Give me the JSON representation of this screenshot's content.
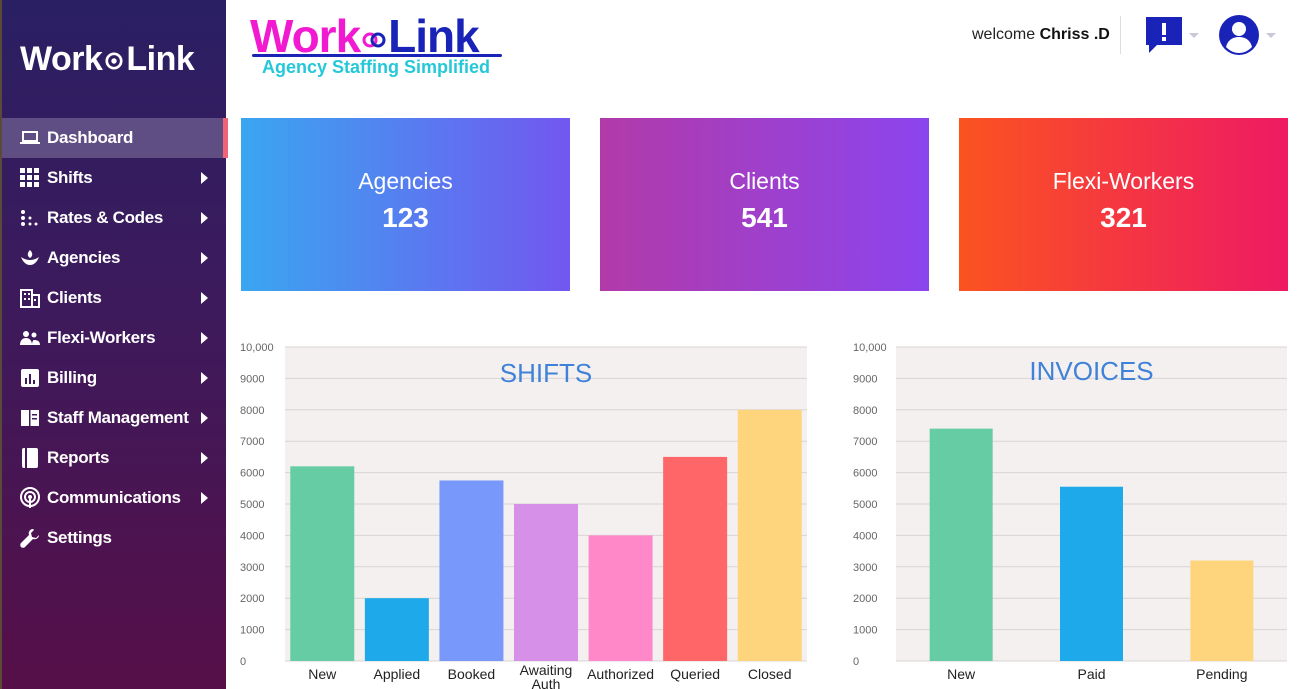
{
  "sidebar": {
    "logo_left": "Work",
    "logo_right": "Link",
    "items": [
      {
        "label": "Dashboard",
        "icon": "laptop-icon",
        "active": true,
        "submenu": false
      },
      {
        "label": "Shifts",
        "icon": "grid-icon",
        "active": false,
        "submenu": true
      },
      {
        "label": "Rates & Codes",
        "icon": "dots-icon",
        "active": false,
        "submenu": true
      },
      {
        "label": "Agencies",
        "icon": "hand-plant-icon",
        "active": false,
        "submenu": true
      },
      {
        "label": "Clients",
        "icon": "building-icon",
        "active": false,
        "submenu": true
      },
      {
        "label": "Flexi-Workers",
        "icon": "people-icon",
        "active": false,
        "submenu": true
      },
      {
        "label": "Billing",
        "icon": "bar-chart-icon",
        "active": false,
        "submenu": true
      },
      {
        "label": "Staff Management",
        "icon": "book-icon",
        "active": false,
        "submenu": true
      },
      {
        "label": "Reports",
        "icon": "report-book-icon",
        "active": false,
        "submenu": true
      },
      {
        "label": "Communications",
        "icon": "podcast-icon",
        "active": false,
        "submenu": true
      },
      {
        "label": "Settings",
        "icon": "wrench-icon",
        "active": false,
        "submenu": false
      }
    ]
  },
  "header": {
    "brand_left": "Work",
    "brand_right": "Link",
    "tagline": "Agency Staffing Simplified",
    "welcome_prefix": "welcome",
    "user_name": "Chriss .D",
    "alert_icon": "alert-message-icon",
    "user_icon": "account-circle-icon"
  },
  "cards": {
    "agencies": {
      "title": "Agencies",
      "value": "123"
    },
    "clients": {
      "title": "Clients",
      "value": "541"
    },
    "flexi": {
      "title": "Flexi-Workers",
      "value": "321"
    }
  },
  "colors": {
    "green": "#66cca3",
    "blue": "#1eaaea",
    "periwinkle": "#7899fb",
    "violet": "#d690e8",
    "pink": "#ff88c9",
    "red": "#ff6667",
    "yellow": "#fed47d",
    "chart_bg": "#f5f0f0",
    "title_blue": "#3f82d8"
  },
  "chart_data": [
    {
      "type": "bar",
      "title": "SHIFTS",
      "categories": [
        "New",
        "Applied",
        "Booked",
        "Awaiting Auth",
        "Authorized",
        "Queried",
        "Closed"
      ],
      "values": [
        6200,
        2000,
        5750,
        5000,
        4000,
        6500,
        8000
      ],
      "bar_colors": [
        "#66cca3",
        "#1eaaea",
        "#7899fb",
        "#d690e8",
        "#ff88c9",
        "#ff6667",
        "#fed47d"
      ],
      "ylim": [
        0,
        10000
      ],
      "yticks": [
        "0",
        "1000",
        "2000",
        "3000",
        "4000",
        "5000",
        "6000",
        "7000",
        "8000",
        "9000",
        "10,000"
      ],
      "grid": true,
      "xlabel": "",
      "ylabel": ""
    },
    {
      "type": "bar",
      "title": "INVOICES",
      "categories": [
        "New",
        "Paid",
        "Pending"
      ],
      "values": [
        7400,
        5550,
        3200
      ],
      "bar_colors": [
        "#66cca3",
        "#1eaaea",
        "#fed47d"
      ],
      "ylim": [
        0,
        10000
      ],
      "yticks": [
        "0",
        "1000",
        "2000",
        "3000",
        "4000",
        "5000",
        "6000",
        "7000",
        "8000",
        "9000",
        "10,000"
      ],
      "grid": true,
      "xlabel": "",
      "ylabel": ""
    }
  ]
}
